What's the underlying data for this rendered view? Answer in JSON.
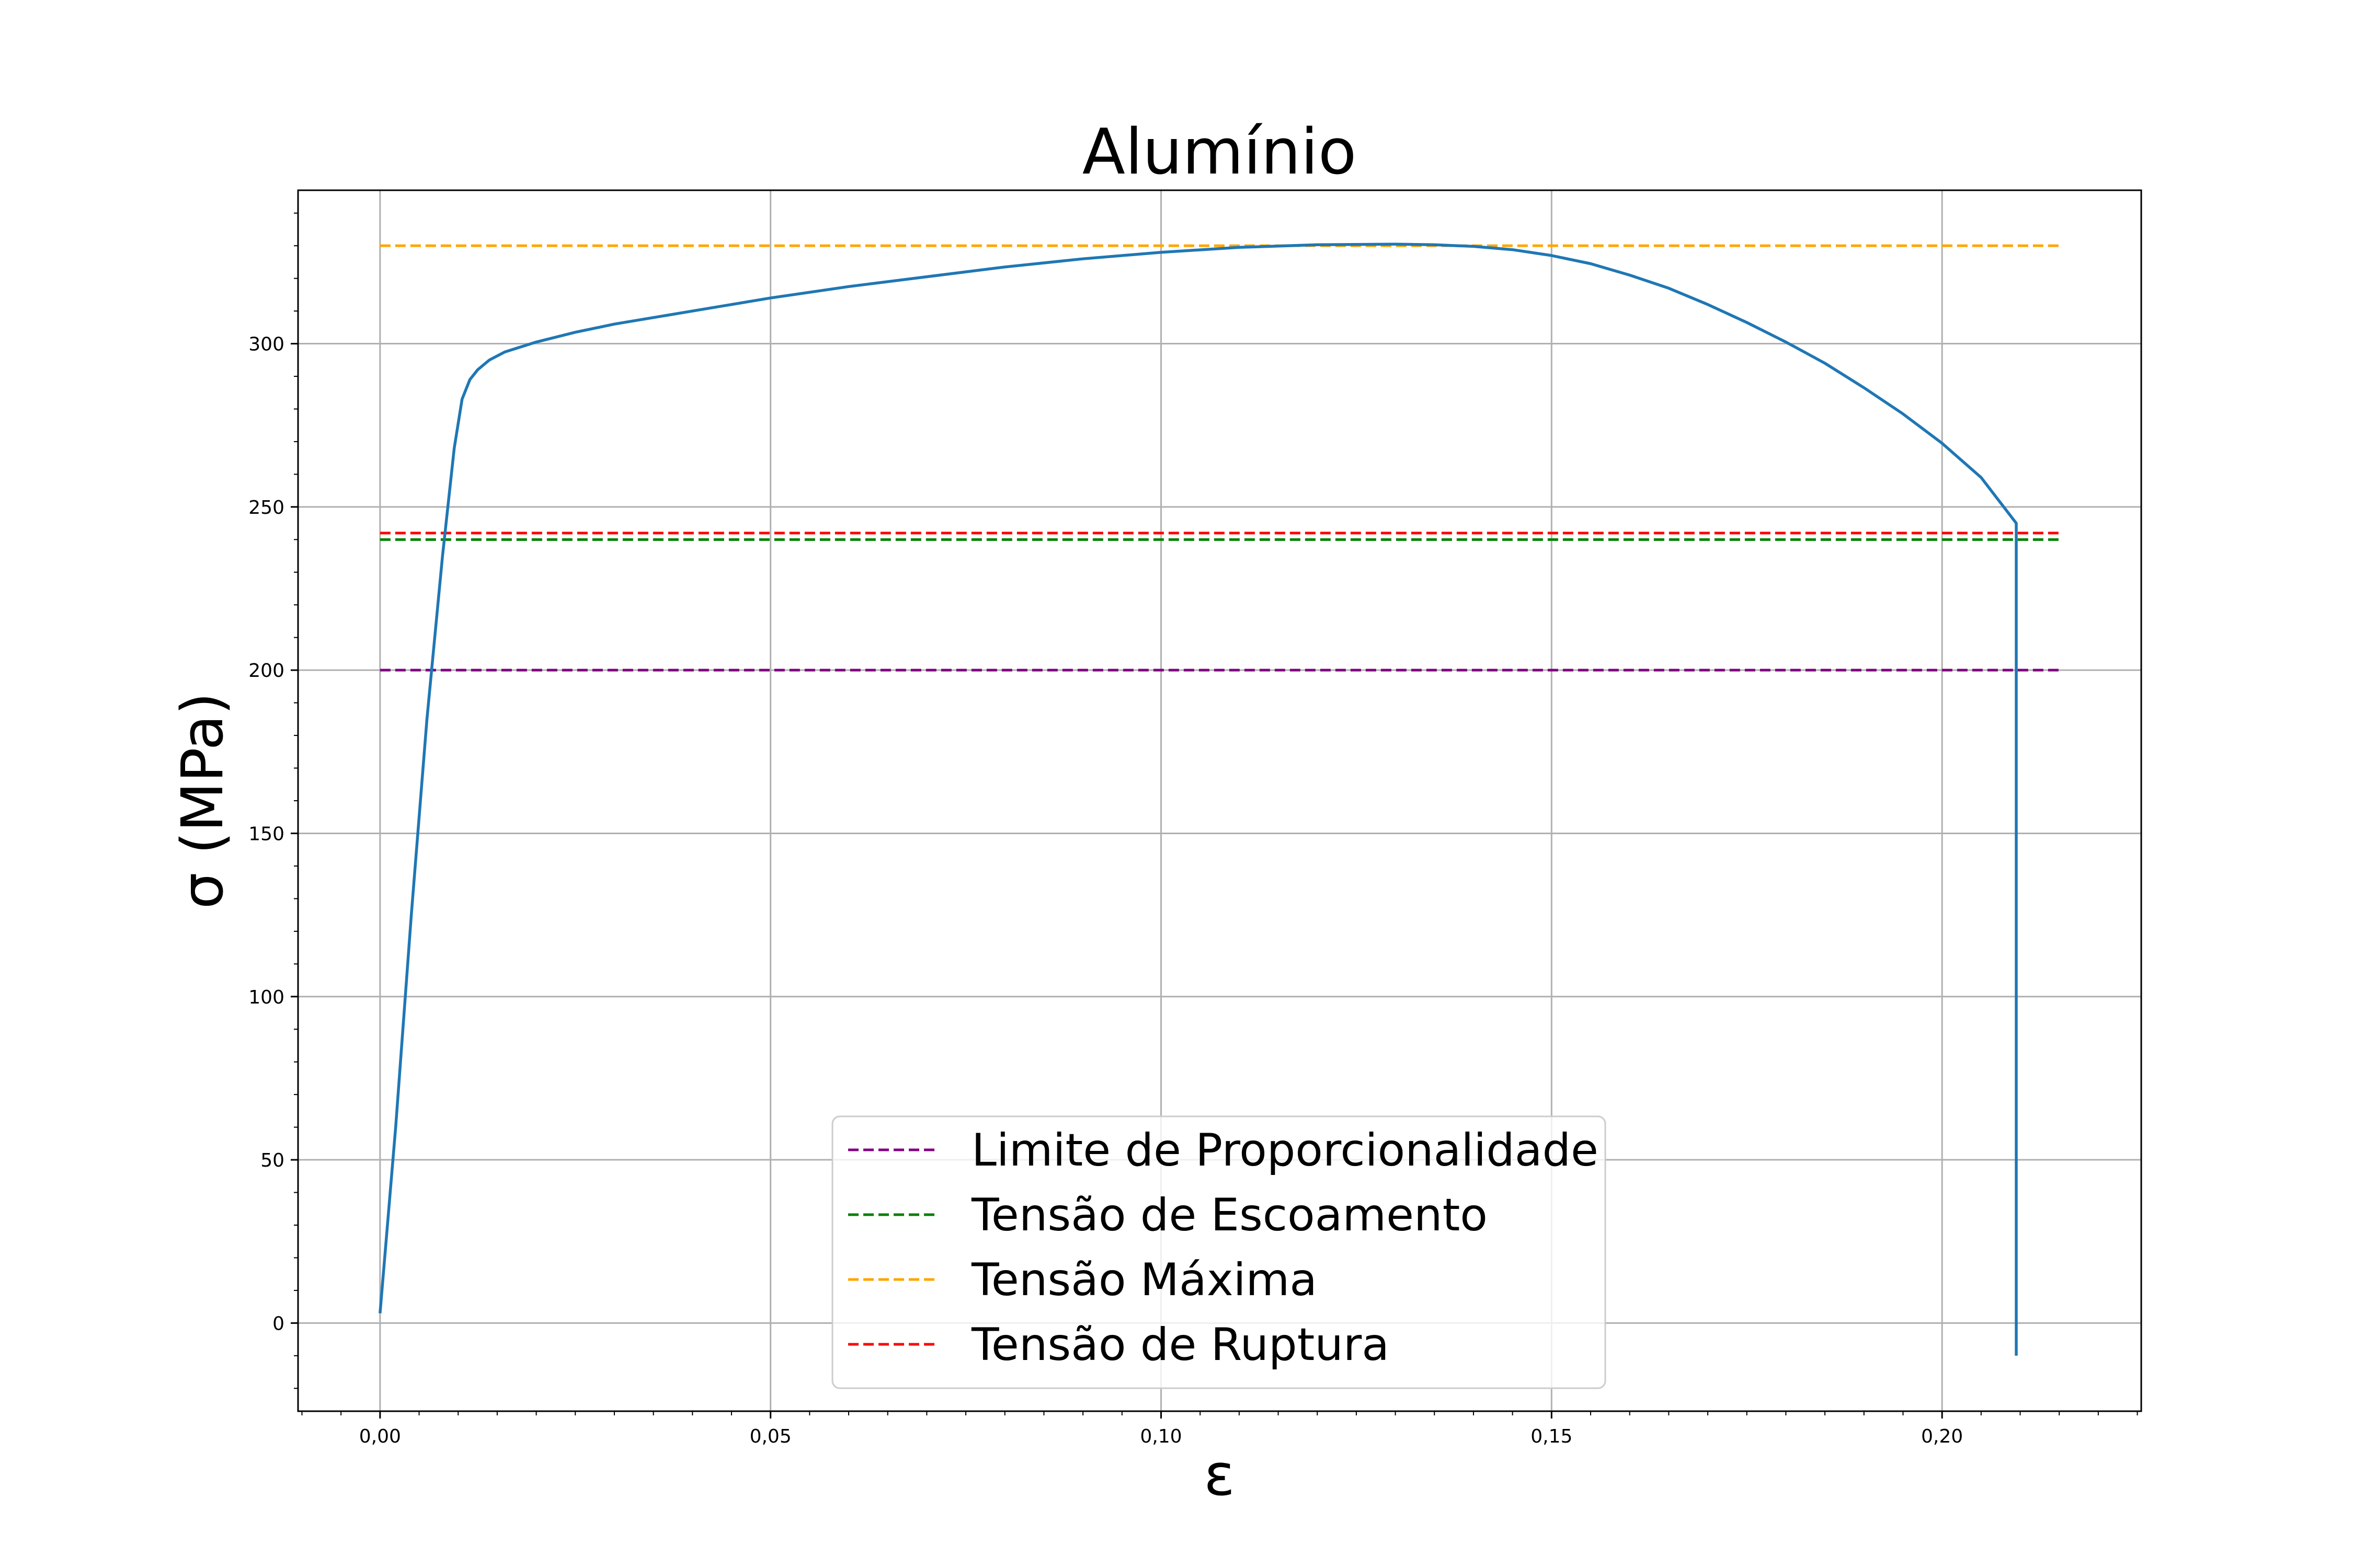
{
  "chart_data": {
    "type": "line",
    "title": "Alumínio",
    "xlabel": "ε",
    "ylabel": "σ (MPa)",
    "xlim": [
      -0.0105,
      0.2255
    ],
    "ylim": [
      -27,
      347
    ],
    "x_ticks": [
      0.0,
      0.05,
      0.1,
      0.15,
      0.2
    ],
    "x_tick_labels": [
      "0,00",
      "0,05",
      "0,10",
      "0,15",
      "0,20"
    ],
    "y_ticks": [
      0,
      50,
      100,
      150,
      200,
      250,
      300
    ],
    "y_tick_labels": [
      "0",
      "50",
      "100",
      "150",
      "200",
      "250",
      "300"
    ],
    "grid": true,
    "legend_position": "lower-center",
    "curve": {
      "color": "#1f77b4",
      "x": [
        0.0,
        0.002,
        0.004,
        0.006,
        0.008,
        0.0095,
        0.0105,
        0.0115,
        0.0125,
        0.014,
        0.016,
        0.02,
        0.025,
        0.03,
        0.04,
        0.05,
        0.06,
        0.07,
        0.08,
        0.09,
        0.1,
        0.11,
        0.12,
        0.13,
        0.135,
        0.14,
        0.145,
        0.15,
        0.155,
        0.16,
        0.165,
        0.17,
        0.175,
        0.18,
        0.185,
        0.19,
        0.195,
        0.2,
        0.205,
        0.2095,
        0.2095,
        0.2095
      ],
      "y": [
        3,
        60,
        125,
        185,
        235,
        268,
        283,
        289,
        292,
        295,
        297.5,
        300.5,
        303.5,
        306,
        310,
        314,
        317.5,
        320.5,
        323.5,
        326,
        328,
        329.5,
        330.3,
        330.5,
        330.3,
        329.8,
        328.8,
        327,
        324.5,
        321,
        317,
        312,
        306.5,
        300.5,
        294,
        286.5,
        278.5,
        269.5,
        259,
        245,
        230,
        -10
      ]
    },
    "series": [
      {
        "name": "Limite de Proporcionalidade",
        "y": 200,
        "x_range": [
          0.0,
          0.215
        ],
        "color": "#800080",
        "style": "dashed"
      },
      {
        "name": "Tensão de Escoamento",
        "y": 240,
        "x_range": [
          0.0,
          0.215
        ],
        "color": "#008000",
        "style": "dashed"
      },
      {
        "name": "Tensão Máxima",
        "y": 330,
        "x_range": [
          0.0,
          0.215
        ],
        "color": "#ffa500",
        "style": "dashed"
      },
      {
        "name": "Tensão de Ruptura",
        "y": 242,
        "x_range": [
          0.0,
          0.215
        ],
        "color": "#ff0000",
        "style": "dashed"
      }
    ]
  }
}
